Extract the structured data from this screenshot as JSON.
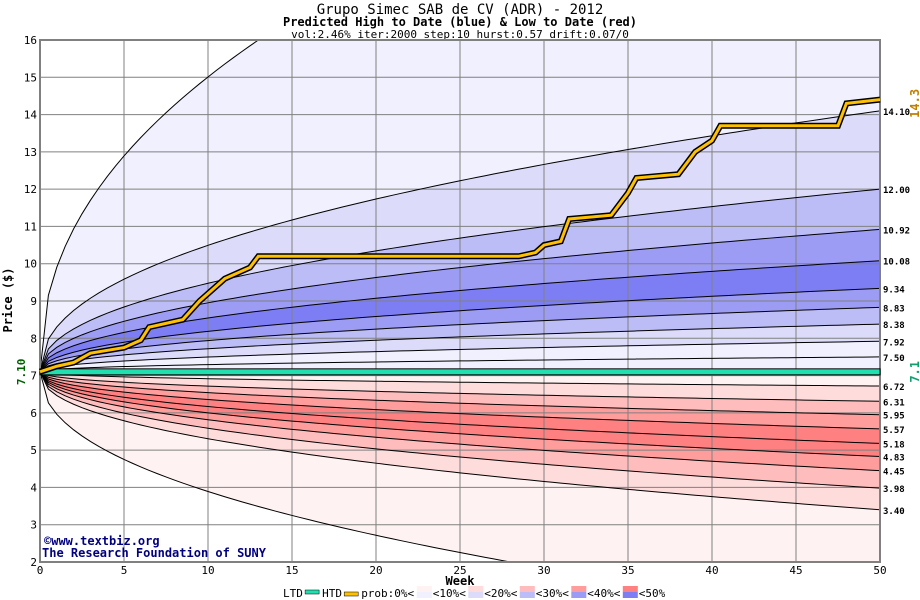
{
  "chart_data": {
    "type": "area",
    "title": "Grupo Simec SAB de CV (ADR) - 2012",
    "subtitle": "Predicted High to Date (blue) &  Low to Date (red)",
    "params": "vol:2.46% iter:2000 step:10 hurst:0.57 drift:0.07/0",
    "xlabel": "Week",
    "ylabel": "Price ($)",
    "xlim": [
      0,
      50
    ],
    "ylim": [
      2,
      16
    ],
    "xticks": [
      "0",
      "5",
      "10",
      "15",
      "20",
      "25",
      "30",
      "35",
      "40",
      "45",
      "50"
    ],
    "yticks": [
      "2",
      "3",
      "4",
      "5",
      "6",
      "7",
      "8",
      "9",
      "10",
      "11",
      "12",
      "13",
      "14",
      "15",
      "16"
    ],
    "start_price": 7.1,
    "start_label": "7.10",
    "ltd_label": "7.1",
    "htd_label": "14.3",
    "high_percentile_end_values": [
      14.1,
      12.0,
      10.92,
      10.08,
      9.34,
      8.83,
      8.38,
      7.92,
      7.5
    ],
    "high_percentile_labels": [
      "14.10",
      "12.00",
      "10.92",
      "10.08",
      "9.34",
      "8.83",
      "8.38",
      "7.92",
      "7.50"
    ],
    "low_percentile_end_values": [
      6.72,
      6.31,
      5.95,
      5.57,
      5.18,
      4.83,
      4.45,
      3.98,
      3.4
    ],
    "low_percentile_labels": [
      "6.72",
      "6.31",
      "5.95",
      "5.57",
      "5.18",
      "4.83",
      "4.45",
      "3.98",
      "3.40"
    ],
    "high_envelope": {
      "reaches_16_at_week": 13
    },
    "low_envelope": {
      "reaches_2_at_week": 28
    },
    "htd_series": [
      [
        0,
        7.1
      ],
      [
        1,
        7.25
      ],
      [
        2,
        7.35
      ],
      [
        3,
        7.6
      ],
      [
        5,
        7.75
      ],
      [
        6,
        7.95
      ],
      [
        6.5,
        8.3
      ],
      [
        8.5,
        8.5
      ],
      [
        9.5,
        9.0
      ],
      [
        10.5,
        9.4
      ],
      [
        11,
        9.6
      ],
      [
        12.5,
        9.9
      ],
      [
        13,
        10.2
      ],
      [
        28.5,
        10.2
      ],
      [
        29.5,
        10.3
      ],
      [
        30,
        10.5
      ],
      [
        31,
        10.6
      ],
      [
        31.5,
        11.2
      ],
      [
        34,
        11.3
      ],
      [
        35,
        11.9
      ],
      [
        35.5,
        12.3
      ],
      [
        38,
        12.4
      ],
      [
        39,
        13.0
      ],
      [
        40,
        13.3
      ],
      [
        40.5,
        13.7
      ],
      [
        47.5,
        13.7
      ],
      [
        48,
        14.3
      ],
      [
        50,
        14.4
      ]
    ],
    "ltd_series": [
      [
        0,
        7.1
      ],
      [
        50,
        7.1
      ]
    ],
    "legend": {
      "ltd": "LTD",
      "htd": "HTD",
      "prob": "prob:0%<",
      "bins": [
        "<10%<",
        "<20%<",
        "<30%<",
        "<40%<",
        "<50%"
      ]
    },
    "colors": {
      "blue": [
        "#f0f0fe",
        "#dcdcfa",
        "#bcbcf6",
        "#9c9cf4",
        "#7e7ef4"
      ],
      "red": [
        "#fff2f2",
        "#ffdcdc",
        "#ffbcbc",
        "#ff9c9c",
        "#ff8080"
      ],
      "htd": "#ffc000",
      "ltd": "#20e0b0"
    },
    "credit": [
      "©www.textbiz.org",
      "The Research Foundation of SUNY"
    ]
  }
}
